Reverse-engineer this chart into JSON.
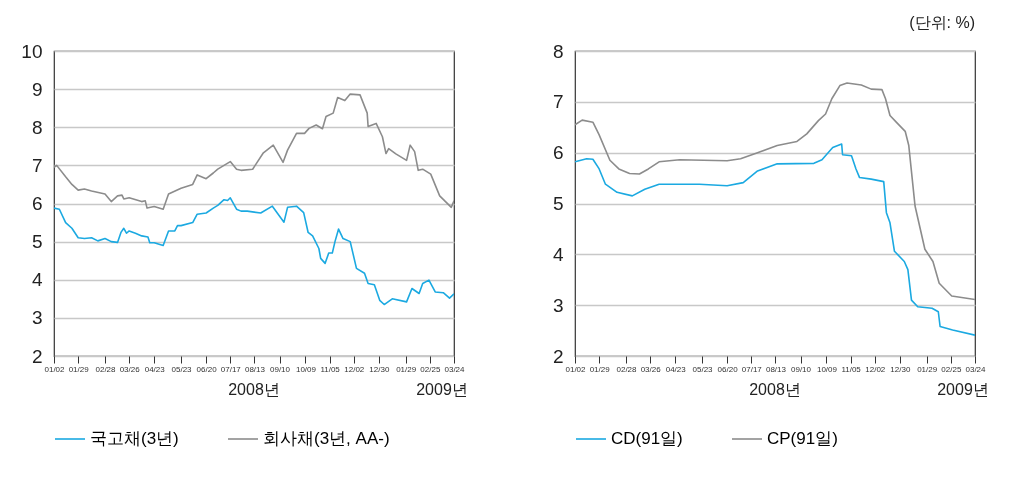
{
  "chart_data": [
    {
      "type": "line",
      "annotations": [
        "2008년",
        "2009년"
      ],
      "xlim": [
        "2008-01-02",
        "2009-03-24"
      ],
      "xticks": [
        {
          "value": "2008-01-02",
          "label": "01/02"
        },
        {
          "value": "2008-01-29",
          "label": "01/29"
        },
        {
          "value": "2008-02-28",
          "label": "02/28"
        },
        {
          "value": "2008-03-26",
          "label": "03/26"
        },
        {
          "value": "2008-04-23",
          "label": "04/23"
        },
        {
          "value": "2008-05-23",
          "label": "05/23"
        },
        {
          "value": "2008-06-20",
          "label": "06/20"
        },
        {
          "value": "2008-07-17",
          "label": "07/17"
        },
        {
          "value": "2008-08-13",
          "label": "08/13"
        },
        {
          "value": "2008-09-10",
          "label": "09/10"
        },
        {
          "value": "2008-10-09",
          "label": "10/09"
        },
        {
          "value": "2008-11-05",
          "label": "11/05"
        },
        {
          "value": "2008-12-02",
          "label": "12/02"
        },
        {
          "value": "2008-12-30",
          "label": "12/30"
        },
        {
          "value": "2009-01-29",
          "label": "01/29"
        },
        {
          "value": "2009-02-25",
          "label": "02/25"
        },
        {
          "value": "2009-03-24",
          "label": "03/24"
        }
      ],
      "ylim": [
        2,
        10
      ],
      "yticks": [
        2,
        3,
        4,
        5,
        6,
        7,
        8,
        9,
        10
      ],
      "grid": "y",
      "legend": "bottom",
      "series": [
        {
          "name": "국고채(3년)",
          "color": "#1ba9e1",
          "x": [
            "2008-01-02",
            "2008-01-08",
            "2008-01-15",
            "2008-01-22",
            "2008-01-29",
            "2008-02-05",
            "2008-02-13",
            "2008-02-20",
            "2008-02-28",
            "2008-03-06",
            "2008-03-13",
            "2008-03-17",
            "2008-03-20",
            "2008-03-23",
            "2008-03-26",
            "2008-04-02",
            "2008-04-09",
            "2008-04-16",
            "2008-04-18",
            "2008-04-23",
            "2008-05-03",
            "2008-05-09",
            "2008-05-16",
            "2008-05-19",
            "2008-05-23",
            "2008-06-05",
            "2008-06-10",
            "2008-06-20",
            "2008-06-28",
            "2008-07-03",
            "2008-07-10",
            "2008-07-14",
            "2008-07-17",
            "2008-07-24",
            "2008-07-29",
            "2008-08-05",
            "2008-08-20",
            "2008-09-02",
            "2008-09-15",
            "2008-09-19",
            "2008-09-29",
            "2008-10-07",
            "2008-10-12",
            "2008-10-17",
            "2008-10-24",
            "2008-10-26",
            "2008-10-31",
            "2008-11-04",
            "2008-11-08",
            "2008-11-11",
            "2008-11-15",
            "2008-11-20",
            "2008-11-28",
            "2008-12-05",
            "2008-12-14",
            "2008-12-18",
            "2008-12-25",
            "2008-12-31",
            "2009-01-05",
            "2009-01-14",
            "2009-01-30",
            "2009-02-05",
            "2009-02-13",
            "2009-02-17",
            "2009-02-24",
            "2009-03-03",
            "2009-03-12",
            "2009-03-19",
            "2009-03-24"
          ],
          "values": [
            5.88,
            5.85,
            5.5,
            5.35,
            5.1,
            5.08,
            5.1,
            5.02,
            5.08,
            5.0,
            4.98,
            5.25,
            5.35,
            5.22,
            5.28,
            5.22,
            5.15,
            5.12,
            4.97,
            4.97,
            4.9,
            5.28,
            5.28,
            5.42,
            5.42,
            5.5,
            5.72,
            5.75,
            5.88,
            5.95,
            6.1,
            6.08,
            6.15,
            5.85,
            5.8,
            5.8,
            5.75,
            5.93,
            5.51,
            5.9,
            5.93,
            5.76,
            5.24,
            5.15,
            4.82,
            4.56,
            4.43,
            4.7,
            4.7,
            5.0,
            5.33,
            5.08,
            5.0,
            4.3,
            4.17,
            3.9,
            3.87,
            3.46,
            3.35,
            3.5,
            3.42,
            3.77,
            3.64,
            3.9,
            3.99,
            3.68,
            3.66,
            3.52,
            3.63
          ]
        },
        {
          "name": "회사채(3년, AA-)",
          "color": "#8c8c8c",
          "x": [
            "2008-01-02",
            "2008-01-05",
            "2008-01-15",
            "2008-01-22",
            "2008-01-29",
            "2008-02-05",
            "2008-02-13",
            "2008-02-28",
            "2008-03-06",
            "2008-03-13",
            "2008-03-18",
            "2008-03-20",
            "2008-03-26",
            "2008-04-09",
            "2008-04-13",
            "2008-04-15",
            "2008-04-23",
            "2008-05-03",
            "2008-05-09",
            "2008-05-23",
            "2008-06-05",
            "2008-06-10",
            "2008-06-20",
            "2008-06-28",
            "2008-07-03",
            "2008-07-10",
            "2008-07-17",
            "2008-07-24",
            "2008-07-29",
            "2008-08-11",
            "2008-08-23",
            "2008-09-03",
            "2008-09-14",
            "2008-09-19",
            "2008-09-29",
            "2008-10-08",
            "2008-10-13",
            "2008-10-21",
            "2008-10-28",
            "2008-11-01",
            "2008-11-09",
            "2008-11-14",
            "2008-11-22",
            "2008-11-28",
            "2008-12-09",
            "2008-12-17",
            "2008-12-18",
            "2008-12-27",
            "2009-01-03",
            "2009-01-07",
            "2009-01-10",
            "2009-01-18",
            "2009-01-30",
            "2009-02-03",
            "2009-02-08",
            "2009-02-12",
            "2009-02-17",
            "2009-02-26",
            "2009-03-08",
            "2009-03-21",
            "2009-03-24"
          ],
          "values": [
            6.95,
            7.0,
            6.7,
            6.5,
            6.35,
            6.38,
            6.33,
            6.25,
            6.05,
            6.2,
            6.22,
            6.12,
            6.15,
            6.05,
            6.07,
            5.88,
            5.92,
            5.85,
            6.25,
            6.4,
            6.5,
            6.75,
            6.65,
            6.8,
            6.9,
            7.0,
            7.1,
            6.9,
            6.87,
            6.9,
            7.33,
            7.53,
            7.08,
            7.4,
            7.84,
            7.84,
            7.97,
            8.06,
            7.96,
            8.28,
            8.37,
            8.78,
            8.7,
            8.87,
            8.85,
            8.37,
            8.02,
            8.1,
            7.75,
            7.31,
            7.44,
            7.3,
            7.13,
            7.53,
            7.36,
            6.87,
            6.9,
            6.77,
            6.2,
            5.9,
            6.07
          ]
        }
      ]
    },
    {
      "type": "line",
      "annotations": [
        "2008년",
        "2009년",
        "(단위: %)"
      ],
      "xlim": [
        "2008-01-02",
        "2009-03-24"
      ],
      "xticks": [
        {
          "value": "2008-01-02",
          "label": "01/02"
        },
        {
          "value": "2008-01-29",
          "label": "01/29"
        },
        {
          "value": "2008-02-28",
          "label": "02/28"
        },
        {
          "value": "2008-03-26",
          "label": "03/26"
        },
        {
          "value": "2008-04-23",
          "label": "04/23"
        },
        {
          "value": "2008-05-23",
          "label": "05/23"
        },
        {
          "value": "2008-06-20",
          "label": "06/20"
        },
        {
          "value": "2008-07-17",
          "label": "07/17"
        },
        {
          "value": "2008-08-13",
          "label": "08/13"
        },
        {
          "value": "2008-09-10",
          "label": "09/10"
        },
        {
          "value": "2008-10-09",
          "label": "10/09"
        },
        {
          "value": "2008-11-05",
          "label": "11/05"
        },
        {
          "value": "2008-12-02",
          "label": "12/02"
        },
        {
          "value": "2008-12-30",
          "label": "12/30"
        },
        {
          "value": "2009-01-29",
          "label": "01/29"
        },
        {
          "value": "2009-02-25",
          "label": "02/25"
        },
        {
          "value": "2009-03-24",
          "label": "03/24"
        }
      ],
      "ylim": [
        2,
        8
      ],
      "yticks": [
        2,
        3,
        4,
        5,
        6,
        7,
        8
      ],
      "grid": "y",
      "legend": "bottom",
      "series": [
        {
          "name": "CD(91일)",
          "color": "#1ba9e1",
          "x": [
            "2008-01-02",
            "2008-01-15",
            "2008-01-22",
            "2008-01-29",
            "2008-02-05",
            "2008-02-18",
            "2008-03-06",
            "2008-03-20",
            "2008-04-05",
            "2008-05-20",
            "2008-06-20",
            "2008-07-08",
            "2008-07-24",
            "2008-08-15",
            "2008-09-25",
            "2008-10-04",
            "2008-10-16",
            "2008-10-26",
            "2008-10-27",
            "2008-11-06",
            "2008-11-11",
            "2008-11-15",
            "2008-11-28",
            "2008-12-12",
            "2008-12-15",
            "2008-12-19",
            "2008-12-24",
            "2009-01-04",
            "2009-01-08",
            "2009-01-12",
            "2009-01-19",
            "2009-02-04",
            "2009-02-11",
            "2009-02-13",
            "2009-02-27",
            "2009-03-24"
          ],
          "values": [
            5.82,
            5.88,
            5.87,
            5.68,
            5.38,
            5.22,
            5.15,
            5.28,
            5.38,
            5.38,
            5.35,
            5.41,
            5.64,
            5.78,
            5.79,
            5.86,
            6.1,
            6.17,
            5.96,
            5.94,
            5.68,
            5.51,
            5.48,
            5.43,
            4.82,
            4.62,
            4.06,
            3.86,
            3.7,
            3.1,
            2.97,
            2.94,
            2.87,
            2.58,
            2.51,
            2.41
          ]
        },
        {
          "name": "CP(91일)",
          "color": "#8c8c8c",
          "x": [
            "2008-01-02",
            "2008-01-10",
            "2008-01-22",
            "2008-01-29",
            "2008-02-10",
            "2008-02-20",
            "2008-03-03",
            "2008-03-14",
            "2008-03-24",
            "2008-04-05",
            "2008-04-28",
            "2008-06-20",
            "2008-07-05",
            "2008-07-24",
            "2008-08-15",
            "2008-09-06",
            "2008-09-17",
            "2008-09-30",
            "2008-10-08",
            "2008-10-15",
            "2008-10-24",
            "2008-11-01",
            "2008-11-17",
            "2008-11-28",
            "2008-12-10",
            "2008-12-14",
            "2008-12-19",
            "2008-12-26",
            "2009-01-05",
            "2009-01-09",
            "2009-01-16",
            "2009-01-27",
            "2009-02-05",
            "2009-02-12",
            "2009-02-26",
            "2009-03-24"
          ],
          "values": [
            6.55,
            6.64,
            6.6,
            6.35,
            5.85,
            5.68,
            5.59,
            5.58,
            5.68,
            5.82,
            5.86,
            5.84,
            5.88,
            6.0,
            6.14,
            6.22,
            6.37,
            6.63,
            6.76,
            7.06,
            7.32,
            7.37,
            7.33,
            7.25,
            7.24,
            7.06,
            6.73,
            6.6,
            6.42,
            6.14,
            4.95,
            4.1,
            3.86,
            3.43,
            3.18,
            3.11
          ]
        }
      ]
    }
  ]
}
